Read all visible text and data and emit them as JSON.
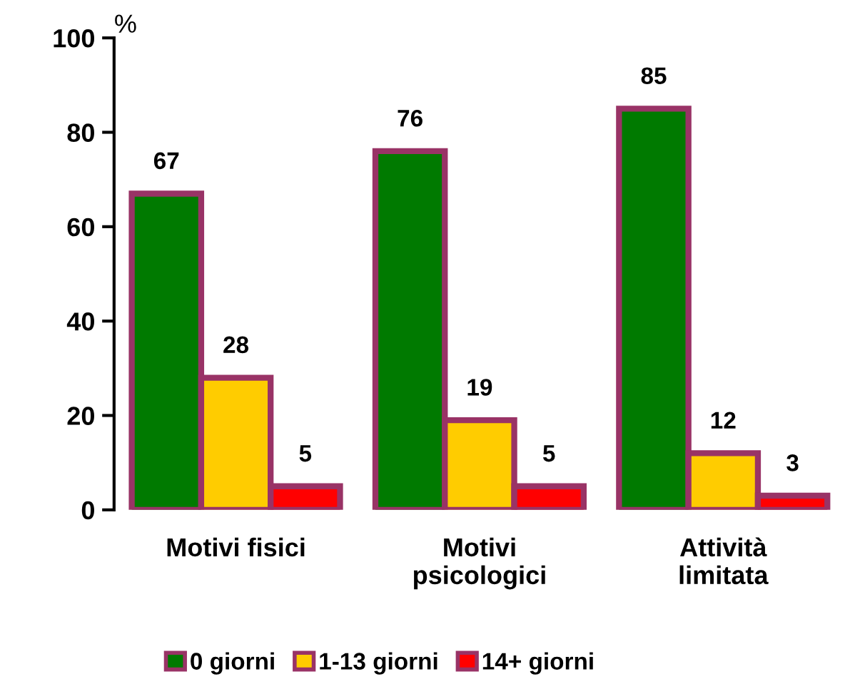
{
  "chart_data": {
    "type": "bar",
    "ylabel": "%",
    "categories": [
      "Motivi fisici",
      "Motivi\npsicologici",
      "Attività\nlimitata"
    ],
    "series": [
      {
        "name": "0 giorni",
        "color": "#007a00",
        "values": [
          67,
          76,
          85
        ]
      },
      {
        "name": "1-13 giorni",
        "color": "#ffcc00",
        "values": [
          28,
          19,
          12
        ]
      },
      {
        "name": "14+ giorni",
        "color": "#ff0000",
        "values": [
          5,
          5,
          3
        ]
      }
    ],
    "ylim": [
      0,
      100
    ],
    "yticks": [
      0,
      20,
      40,
      60,
      80,
      100
    ],
    "data_labels": true,
    "legend": "bottom",
    "grid": false
  }
}
